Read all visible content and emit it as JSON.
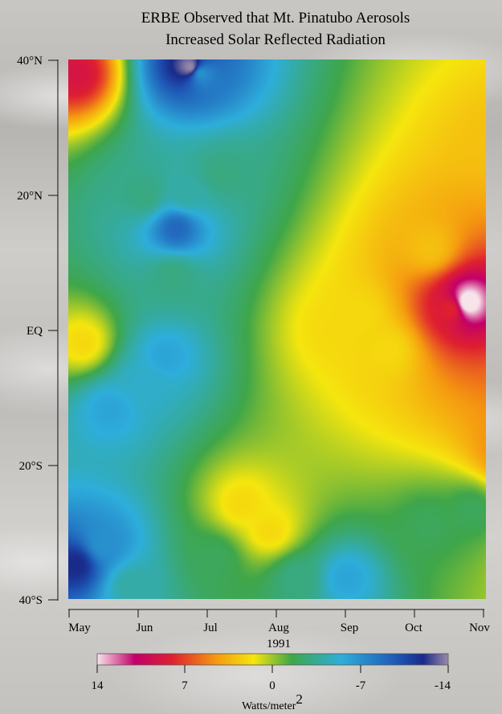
{
  "chart_data": {
    "type": "heatmap",
    "title_lines": [
      "ERBE Observed that Mt. Pinatubo Aerosols",
      "Increased Solar Reflected Radiation"
    ],
    "x_tick_labels": [
      "May",
      "Jun",
      "Jul",
      "Aug",
      "Sep",
      "Oct",
      "Nov"
    ],
    "x_year_label": "1991",
    "y_tick_labels": [
      "40°N",
      "20°N",
      "EQ",
      "20°S",
      "40°S"
    ],
    "y_range_deg_lat": [
      -40,
      40
    ],
    "x_range_months": [
      "May",
      "Nov"
    ],
    "colorbar": {
      "tick_labels": [
        "14",
        "7",
        "0",
        "-7",
        "-14"
      ],
      "range": [
        14,
        -14
      ],
      "unit_text": "Watts/meter",
      "unit_superscript": "2",
      "stops": [
        {
          "value": 14,
          "color": "#f6e4ea"
        },
        {
          "value": 11,
          "color": "#c2006a"
        },
        {
          "value": 8,
          "color": "#df2030"
        },
        {
          "value": 4.5,
          "color": "#f59a10"
        },
        {
          "value": 1.5,
          "color": "#f5e60e"
        },
        {
          "value": -1.5,
          "color": "#3fa64a"
        },
        {
          "value": -5.5,
          "color": "#2eaedb"
        },
        {
          "value": -10,
          "color": "#1e55b5"
        },
        {
          "value": -12,
          "color": "#1a2a8a"
        },
        {
          "value": -14,
          "color": "#9a8aa8"
        }
      ]
    },
    "background_value_w_m2": -1,
    "features": [
      {
        "month": 5.75,
        "lat": 4,
        "value": 15
      },
      {
        "month": 6.35,
        "lat": 4,
        "value": 12
      },
      {
        "month": 5.5,
        "lat": 3,
        "value": 8
      },
      {
        "month": 6.9,
        "lat": 3,
        "value": 5
      },
      {
        "month": 7.3,
        "lat": 4,
        "value": 3
      },
      {
        "month": 7.9,
        "lat": 3,
        "value": 3
      },
      {
        "month": 8.0,
        "lat": 10,
        "value": 3
      },
      {
        "month": 7.0,
        "lat": -6,
        "value": 7
      },
      {
        "month": 7.4,
        "lat": -11,
        "value": 9
      },
      {
        "month": 7.6,
        "lat": -16,
        "value": 9
      },
      {
        "month": 7.0,
        "lat": -20,
        "value": 5
      },
      {
        "month": 6.3,
        "lat": -18,
        "value": 5
      },
      {
        "month": 7.8,
        "lat": -13,
        "value": 4
      },
      {
        "month": 7.9,
        "lat": 20,
        "value": 3
      },
      {
        "month": 7.1,
        "lat": 18,
        "value": 3
      },
      {
        "month": 6.2,
        "lat": 28,
        "value": 3
      },
      {
        "month": 5.2,
        "lat": 12,
        "value": 3
      },
      {
        "month": 4.2,
        "lat": 2,
        "value": 2
      },
      {
        "month": 4.6,
        "lat": -3,
        "value": 2
      },
      {
        "month": 3.8,
        "lat": 0,
        "value": 2
      },
      {
        "month": 7.0,
        "lat": 0,
        "value": 2
      },
      {
        "month": 2.9,
        "lat": -30,
        "value": 2
      },
      {
        "month": 2.5,
        "lat": -26,
        "value": 2
      },
      {
        "month": 0.1,
        "lat": 38,
        "value": 9
      },
      {
        "month": 0.2,
        "lat": -2,
        "value": 2
      },
      {
        "month": 1.75,
        "lat": 39,
        "value": -14
      },
      {
        "month": 1.9,
        "lat": 38,
        "value": -7
      },
      {
        "month": 1.55,
        "lat": 15,
        "value": -9
      },
      {
        "month": 1.7,
        "lat": 20,
        "value": -4
      },
      {
        "month": 1.1,
        "lat": 20,
        "value": -3
      },
      {
        "month": 2.2,
        "lat": 23,
        "value": -3
      },
      {
        "month": 1.4,
        "lat": -4,
        "value": -6
      },
      {
        "month": 0.6,
        "lat": -12,
        "value": -6
      },
      {
        "month": 1.1,
        "lat": -8,
        "value": -5
      },
      {
        "month": 0.1,
        "lat": -35,
        "value": -12
      },
      {
        "month": 0.5,
        "lat": -32,
        "value": -7
      },
      {
        "month": 0.9,
        "lat": -38,
        "value": -4
      },
      {
        "month": 4.0,
        "lat": -37,
        "value": -6
      },
      {
        "month": 3.3,
        "lat": -37,
        "value": -3
      },
      {
        "month": 5.2,
        "lat": -29,
        "value": -2
      },
      {
        "month": 5.8,
        "lat": -27,
        "value": -2
      },
      {
        "month": 2.1,
        "lat": -34,
        "value": -2
      },
      {
        "month": 1.5,
        "lat": 8,
        "value": -3
      }
    ]
  }
}
